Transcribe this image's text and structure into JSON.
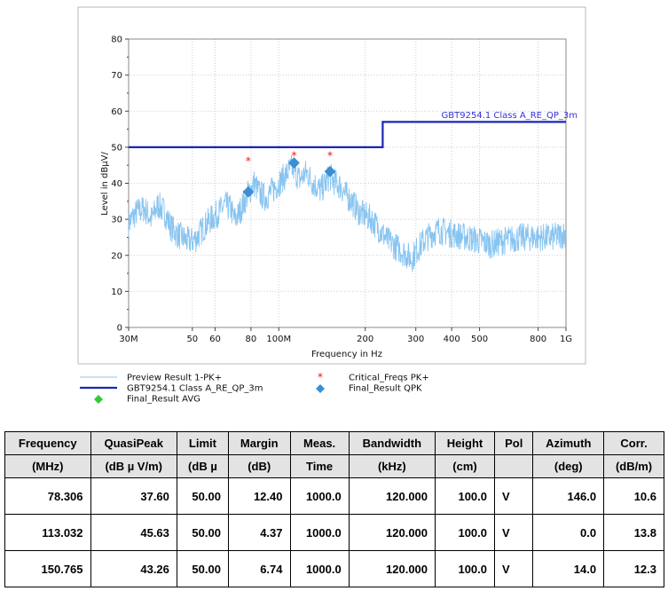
{
  "chart_data": {
    "type": "line",
    "xlabel": "Frequency in Hz",
    "ylabel": "Level in dBµV/",
    "x_scale": "log",
    "xlim": [
      30000000,
      1000000000
    ],
    "ylim": [
      0,
      80
    ],
    "x_ticks": [
      {
        "value": 30000000,
        "label": "30M"
      },
      {
        "value": 50000000,
        "label": "50"
      },
      {
        "value": 60000000,
        "label": "60"
      },
      {
        "value": 80000000,
        "label": "80"
      },
      {
        "value": 100000000,
        "label": "100M"
      },
      {
        "value": 200000000,
        "label": "200"
      },
      {
        "value": 300000000,
        "label": "300"
      },
      {
        "value": 400000000,
        "label": "400"
      },
      {
        "value": 500000000,
        "label": "500"
      },
      {
        "value": 800000000,
        "label": "800"
      },
      {
        "value": 1000000000,
        "label": "1G"
      }
    ],
    "y_ticks": [
      0,
      10,
      20,
      30,
      40,
      50,
      60,
      70,
      80
    ],
    "grid": true,
    "legend_position": "bottom",
    "series": [
      {
        "name": "Preview Result 1-PK+",
        "style": "noisy-line",
        "color": "#88c4f0",
        "points": [
          [
            30,
            29
          ],
          [
            32,
            32
          ],
          [
            34,
            33
          ],
          [
            36,
            30
          ],
          [
            38,
            34
          ],
          [
            40,
            32
          ],
          [
            42,
            28
          ],
          [
            44,
            26
          ],
          [
            46,
            25
          ],
          [
            48,
            24
          ],
          [
            50,
            24
          ],
          [
            52,
            25
          ],
          [
            55,
            28
          ],
          [
            58,
            30
          ],
          [
            62,
            32
          ],
          [
            65,
            34
          ],
          [
            68,
            33
          ],
          [
            70,
            30
          ],
          [
            72,
            31
          ],
          [
            75,
            34
          ],
          [
            78,
            37
          ],
          [
            82,
            40
          ],
          [
            86,
            37
          ],
          [
            90,
            36
          ],
          [
            95,
            38
          ],
          [
            100,
            40
          ],
          [
            105,
            42
          ],
          [
            110,
            44
          ],
          [
            113,
            44
          ],
          [
            118,
            41
          ],
          [
            125,
            43
          ],
          [
            132,
            40
          ],
          [
            140,
            38
          ],
          [
            148,
            41
          ],
          [
            150,
            42
          ],
          [
            158,
            40
          ],
          [
            165,
            39
          ],
          [
            170,
            37
          ],
          [
            180,
            35
          ],
          [
            190,
            32
          ],
          [
            200,
            31
          ],
          [
            210,
            30
          ],
          [
            225,
            27
          ],
          [
            240,
            24
          ],
          [
            260,
            22
          ],
          [
            280,
            20
          ],
          [
            290,
            19
          ],
          [
            300,
            21
          ],
          [
            320,
            24
          ],
          [
            340,
            26
          ],
          [
            360,
            27
          ],
          [
            400,
            26
          ],
          [
            450,
            25
          ],
          [
            500,
            24
          ],
          [
            550,
            23
          ],
          [
            600,
            24
          ],
          [
            700,
            25
          ],
          [
            800,
            25
          ],
          [
            900,
            25
          ],
          [
            1000,
            26
          ]
        ]
      },
      {
        "name": "GBT9254.1 Class A_RE_QP_3m",
        "style": "step",
        "color": "#1a26b8",
        "points": [
          [
            30,
            50
          ],
          [
            230,
            50
          ],
          [
            230,
            57
          ],
          [
            1000,
            57
          ]
        ]
      },
      {
        "name": "Critical_Freqs PK+",
        "style": "star",
        "color": "#ee1111",
        "points": [
          [
            78.306,
            46.1
          ],
          [
            113.032,
            47.6
          ],
          [
            150.765,
            47.6
          ]
        ]
      },
      {
        "name": "Final_Result QPK",
        "style": "diamond",
        "color": "#3a8fd6",
        "points": [
          [
            78.306,
            37.6
          ],
          [
            113.032,
            45.63
          ],
          [
            150.765,
            43.26
          ]
        ]
      },
      {
        "name": "Final_Result AVG",
        "style": "diamond",
        "color": "#33cc33",
        "points": []
      }
    ],
    "annotations": [
      {
        "text": "GBT9254.1 Class A_RE_QP_3m"
      }
    ]
  },
  "table": {
    "headers": [
      [
        "Frequency",
        "(MHz)"
      ],
      [
        "QuasiPeak",
        "(dB µ V/m)"
      ],
      [
        "Limit",
        "(dB µ"
      ],
      [
        "Margin",
        "(dB)"
      ],
      [
        "Meas.",
        "Time"
      ],
      [
        "Bandwidth",
        "(kHz)"
      ],
      [
        "Height",
        "(cm)"
      ],
      [
        "Pol",
        ""
      ],
      [
        "Azimuth",
        "(deg)"
      ],
      [
        "Corr.",
        "(dB/m)"
      ]
    ],
    "rows": [
      [
        "78.306",
        "37.60",
        "50.00",
        "12.40",
        "1000.0",
        "120.000",
        "100.0",
        "V",
        "146.0",
        "10.6"
      ],
      [
        "113.032",
        "45.63",
        "50.00",
        "4.37",
        "1000.0",
        "120.000",
        "100.0",
        "V",
        "0.0",
        "13.8"
      ],
      [
        "150.765",
        "43.26",
        "50.00",
        "6.74",
        "1000.0",
        "120.000",
        "100.0",
        "V",
        "14.0",
        "12.3"
      ]
    ]
  }
}
